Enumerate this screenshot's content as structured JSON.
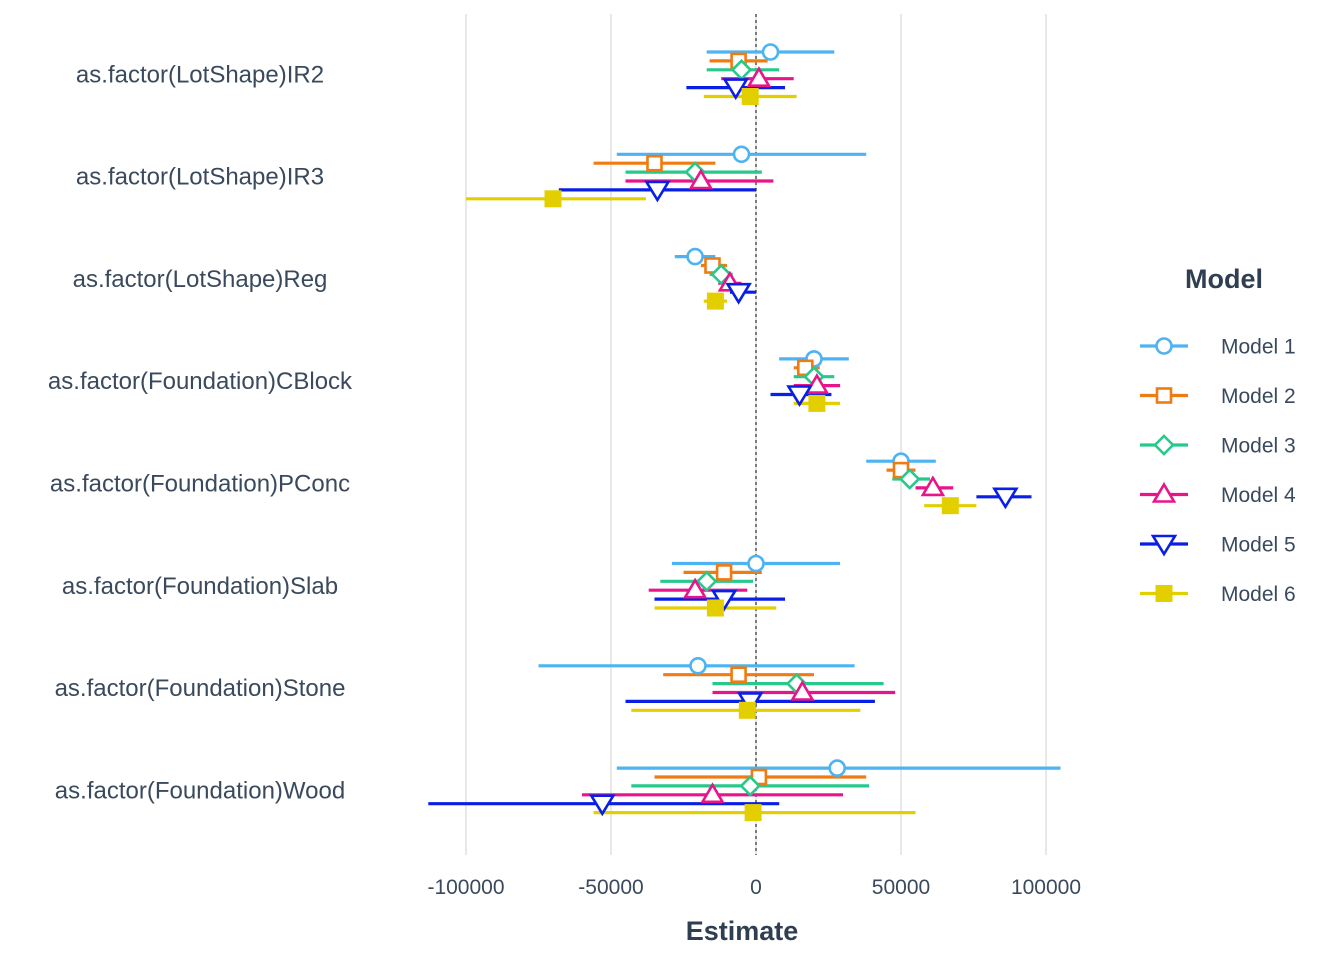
{
  "chart_data": {
    "type": "coefficient-plot",
    "xlabel": "Estimate",
    "xlim": [
      -100000,
      100000
    ],
    "xticks": [
      -100000,
      -50000,
      0,
      50000,
      100000
    ],
    "xtick_labels": [
      "-100000",
      "-50000",
      "0",
      "50000",
      "100000"
    ],
    "grid": "vertical major gridlines",
    "reference_line": {
      "x": 0,
      "style": "dashed"
    },
    "legend": {
      "title": "Model",
      "position": "right"
    },
    "categories": [
      "as.factor(LotShape)IR2",
      "as.factor(LotShape)IR3",
      "as.factor(LotShape)Reg",
      "as.factor(Foundation)CBlock",
      "as.factor(Foundation)PConc",
      "as.factor(Foundation)Slab",
      "as.factor(Foundation)Stone",
      "as.factor(Foundation)Wood"
    ],
    "series": [
      {
        "name": "Model 1",
        "color": "#4db3f2",
        "marker": "open-circle",
        "estimates": [
          5000,
          -5000,
          -21000,
          20000,
          50000,
          0,
          -20000,
          28000
        ],
        "lower": [
          -17000,
          -48000,
          -28000,
          8000,
          38000,
          -29000,
          -75000,
          -48000
        ],
        "upper": [
          27000,
          38000,
          -14000,
          32000,
          62000,
          29000,
          34000,
          105000
        ]
      },
      {
        "name": "Model 2",
        "color": "#f07b12",
        "marker": "open-square",
        "estimates": [
          -6000,
          -35000,
          -15000,
          17000,
          50000,
          -11000,
          -6000,
          1000
        ],
        "lower": [
          -16000,
          -56000,
          -19000,
          13000,
          45000,
          -25000,
          -32000,
          -35000
        ],
        "upper": [
          4000,
          -14000,
          -10000,
          22000,
          55000,
          2000,
          20000,
          38000
        ]
      },
      {
        "name": "Model 3",
        "color": "#27c98b",
        "marker": "open-diamond",
        "estimates": [
          -5000,
          -21000,
          -12000,
          20000,
          53000,
          -17000,
          14000,
          -2000
        ],
        "lower": [
          -17000,
          -45000,
          -16000,
          13000,
          47000,
          -33000,
          -15000,
          -43000
        ],
        "upper": [
          8000,
          2000,
          -8000,
          27000,
          60000,
          -1000,
          44000,
          39000
        ]
      },
      {
        "name": "Model 4",
        "color": "#e8158a",
        "marker": "open-triangle-up",
        "estimates": [
          1000,
          -19000,
          -9000,
          21000,
          61000,
          -21000,
          16000,
          -15000
        ],
        "lower": [
          -12000,
          -45000,
          -13000,
          13000,
          55000,
          -37000,
          -15000,
          -60000
        ],
        "upper": [
          13000,
          6000,
          -5000,
          29000,
          68000,
          -3000,
          48000,
          30000
        ]
      },
      {
        "name": "Model 5",
        "color": "#0a1fe6",
        "marker": "open-triangle-down",
        "estimates": [
          -7000,
          -34000,
          -6000,
          15000,
          86000,
          -11000,
          -2000,
          -53000
        ],
        "lower": [
          -24000,
          -68000,
          -9000,
          5000,
          76000,
          -35000,
          -45000,
          -113000
        ],
        "upper": [
          10000,
          0,
          0,
          26000,
          95000,
          10000,
          41000,
          8000
        ]
      },
      {
        "name": "Model 6",
        "color": "#e3cf00",
        "marker": "filled-square",
        "estimates": [
          -2000,
          -70000,
          -14000,
          21000,
          67000,
          -14000,
          -3000,
          -1000
        ],
        "lower": [
          -18000,
          -100000,
          -18000,
          13000,
          58000,
          -35000,
          -43000,
          -56000
        ],
        "upper": [
          14000,
          -38000,
          -10000,
          29000,
          76000,
          7000,
          36000,
          55000
        ]
      }
    ]
  }
}
